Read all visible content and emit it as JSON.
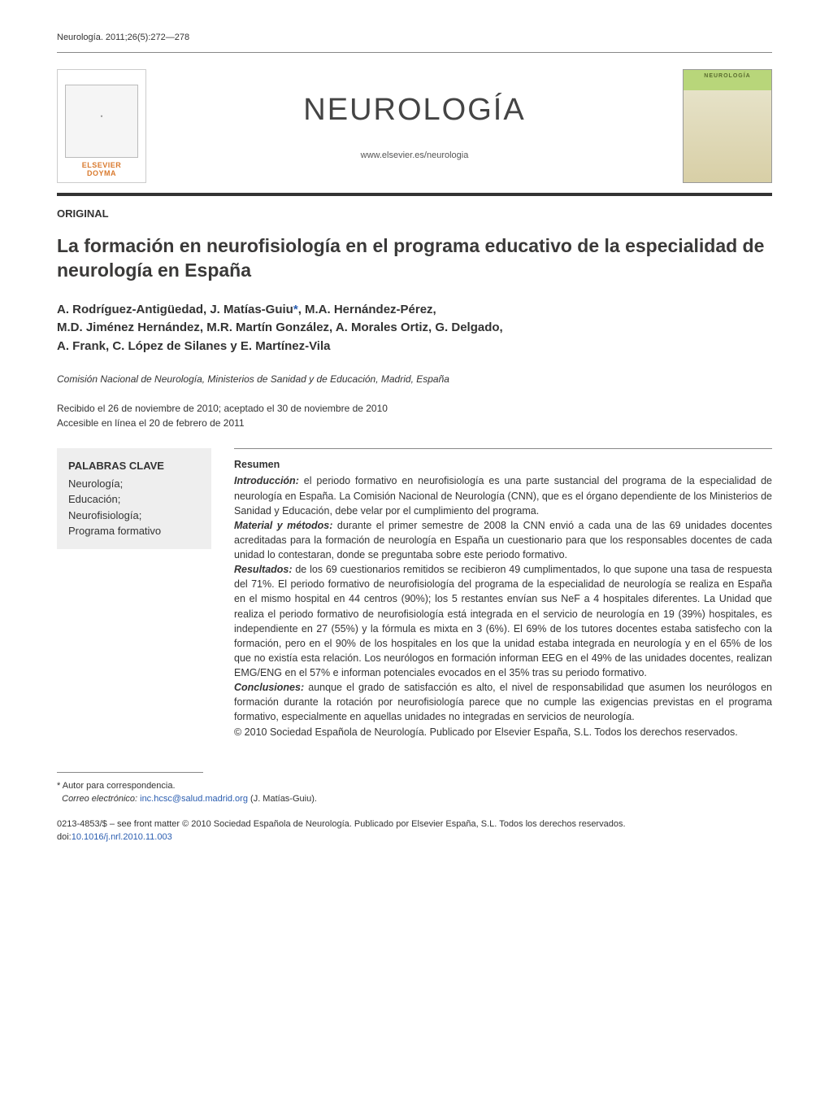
{
  "citation": "Neurología. 2011;26(5):272—278",
  "publisher_logo": {
    "line1": "ELSEVIER",
    "line2": "DOYMA"
  },
  "journal": {
    "name": "NEUROLOGÍA",
    "url": "www.elsevier.es/neurologia",
    "cover_label": "NEUROLOGÍA"
  },
  "article_type": "ORIGINAL",
  "title": "La formación en neurofisiología en el programa educativo de la especialidad de neurología en España",
  "authors": "A. Rodríguez-Antigüedad, J. Matías-Guiu*, M.A. Hernández-Pérez, M.D. Jiménez Hernández, M.R. Martín González, A. Morales Ortiz, G. Delgado, A. Frank, C. López de Silanes y E. Martínez-Vila",
  "affiliation": "Comisión Nacional de Neurología, Ministerios de Sanidad y de Educación, Madrid, España",
  "dates": {
    "received_accepted": "Recibido el 26 de noviembre de 2010; aceptado el 30 de noviembre de 2010",
    "online": "Accesible en línea el 20 de febrero de 2011"
  },
  "keywords": {
    "heading": "PALABRAS CLAVE",
    "items": "Neurología;\nEducación;\nNeurofisiología;\nPrograma formativo"
  },
  "abstract": {
    "heading": "Resumen",
    "intro_label": "Introducción:",
    "intro_text": " el periodo formativo en neurofisiología es una parte sustancial del programa de la especialidad de neurología en España. La Comisión Nacional de Neurología (CNN), que es el órgano dependiente de los Ministerios de Sanidad y Educación, debe velar por el cumplimiento del programa.",
    "methods_label": "Material y métodos:",
    "methods_text": " durante el primer semestre de 2008 la CNN envió a cada una de las 69 unidades docentes acreditadas para la formación de neurología en España un cuestionario para que los responsables docentes de cada unidad lo contestaran, donde se preguntaba sobre este periodo formativo.",
    "results_label": "Resultados:",
    "results_text": " de los 69 cuestionarios remitidos se recibieron 49 cumplimentados, lo que supone una tasa de respuesta del 71%. El periodo formativo de neurofisiología del programa de la especialidad de neurología se realiza en España en el mismo hospital en 44 centros (90%); los 5 restantes envían sus NeF a 4 hospitales diferentes. La Unidad que realiza el periodo formativo de neurofisiología está integrada en el servicio de neurología en 19 (39%) hospitales, es independiente en 27 (55%) y la fórmula es mixta en 3 (6%). El 69% de los tutores docentes estaba satisfecho con la formación, pero en el 90% de los hospitales en los que la unidad estaba integrada en neurología y en el 65% de los que no existía esta relación. Los neurólogos en formación informan EEG en el 49% de las unidades docentes, realizan EMG/ENG en el 57% e informan potenciales evocados en el 35% tras su periodo formativo.",
    "conclusions_label": "Conclusiones:",
    "conclusions_text": " aunque el grado de satisfacción es alto, el nivel de responsabilidad que asumen los neurólogos en formación durante la rotación por neurofisiología parece que no cumple las exigencias previstas en el programa formativo, especialmente en aquellas unidades no integradas en servicios de neurología.",
    "copyright": "© 2010 Sociedad Española de Neurología. Publicado por Elsevier España, S.L. Todos los derechos reservados."
  },
  "footnote": {
    "corr": "* Autor para correspondencia.",
    "email_label": "Correo electrónico:",
    "email": "inc.hcsc@salud.madrid.org",
    "email_author": " (J. Matías-Guiu)."
  },
  "footer": {
    "issn_line": "0213-4853/$ – see front matter © 2010 Sociedad Española de Neurología. Publicado por Elsevier España, S.L. Todos los derechos reservados.",
    "doi_label": "doi:",
    "doi": "10.1016/j.nrl.2010.11.003"
  },
  "colors": {
    "text": "#333333",
    "link": "#2a5db0",
    "rule": "#333333",
    "keyword_bg": "#eeeeee",
    "logo_orange": "#d97a2e"
  }
}
